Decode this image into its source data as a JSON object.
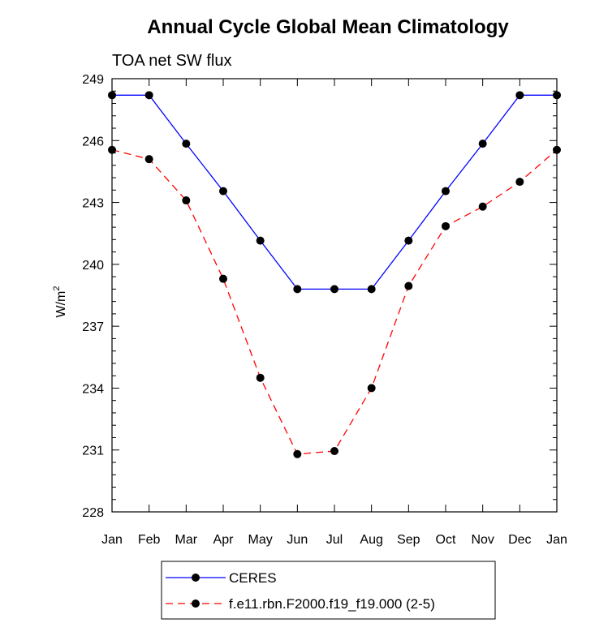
{
  "chart_data": {
    "type": "line",
    "title": "Annual Cycle Global Mean Climatology",
    "subtitle": "TOA net SW flux",
    "ylabel": "W/m",
    "ylabel_sup": "2",
    "xlabel": "",
    "categories": [
      "Jan",
      "Feb",
      "Mar",
      "Apr",
      "May",
      "Jun",
      "Jul",
      "Aug",
      "Sep",
      "Oct",
      "Nov",
      "Dec",
      "Jan"
    ],
    "ylim": [
      228,
      249
    ],
    "yticks": [
      228,
      231,
      234,
      237,
      240,
      243,
      246,
      249
    ],
    "ytick_labels": [
      "228",
      "231",
      "234",
      "237",
      "240",
      "243",
      "246",
      "249"
    ],
    "series": [
      {
        "name": "CERES",
        "color": "#0000ff",
        "dash": "solid",
        "values": [
          248.2,
          248.2,
          245.85,
          243.55,
          241.15,
          238.8,
          238.8,
          238.8,
          241.15,
          243.55,
          245.85,
          248.2,
          248.2
        ]
      },
      {
        "name": "f.e11.rbn.F2000.f19_f19.000 (2-5)",
        "color": "#ff0000",
        "dash": "dashed",
        "values": [
          245.55,
          245.1,
          243.1,
          239.3,
          234.5,
          230.8,
          230.95,
          234.0,
          238.95,
          241.85,
          242.8,
          244.0,
          245.55
        ]
      }
    ],
    "legend_position": "bottom-center"
  }
}
